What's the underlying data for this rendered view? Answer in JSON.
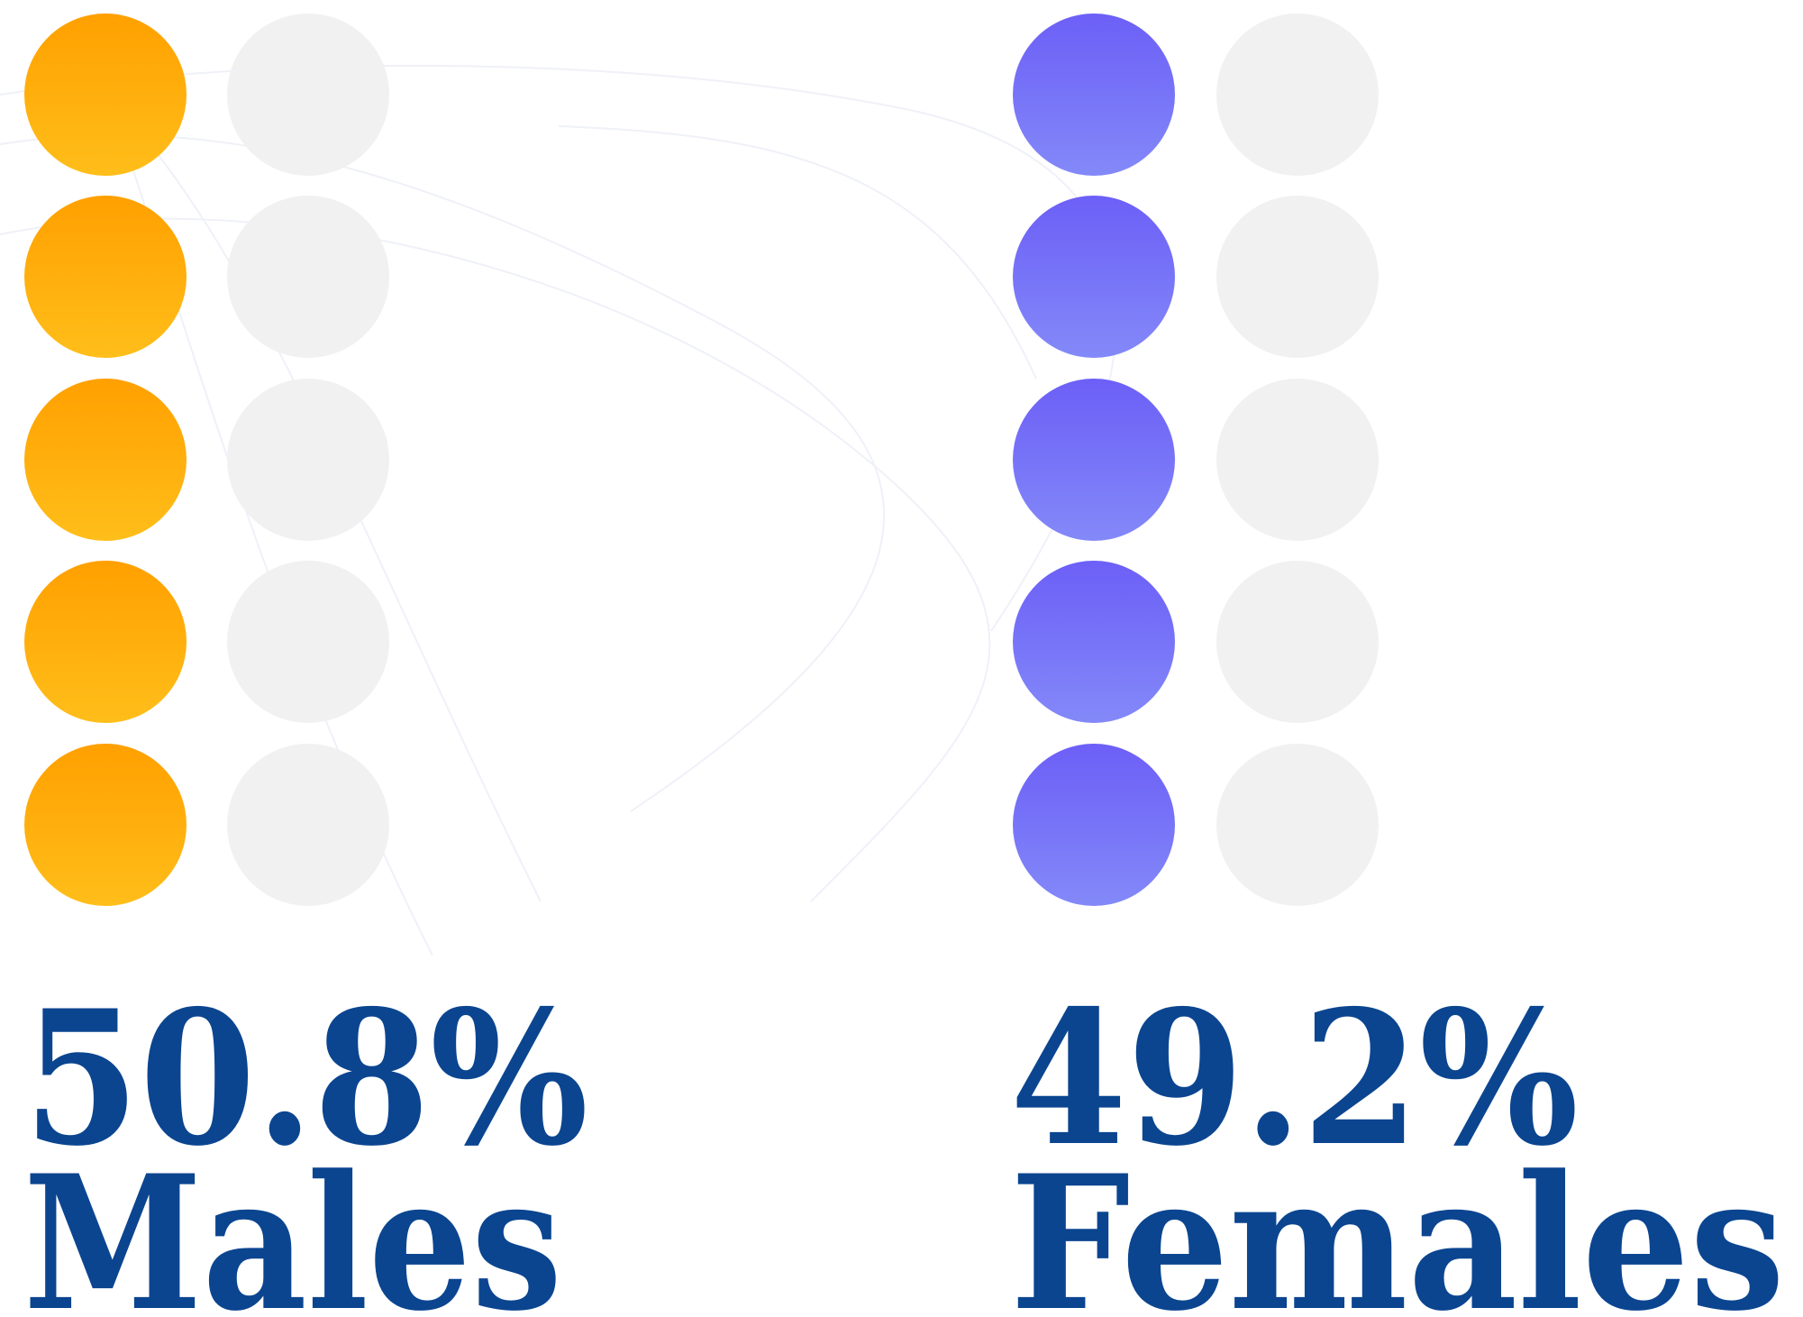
{
  "chart_data": {
    "type": "pictogram",
    "categories": [
      "Males",
      "Females"
    ],
    "values": [
      50.8,
      49.2
    ],
    "value_labels": [
      "50.8%",
      "49.2%"
    ],
    "colors": [
      [
        "#FFA000",
        "#FFBE1A"
      ],
      [
        "#6C5FF7",
        "#8389F8"
      ]
    ],
    "empty_color": "#F0F1F0",
    "text_color": "#0B4590"
  }
}
